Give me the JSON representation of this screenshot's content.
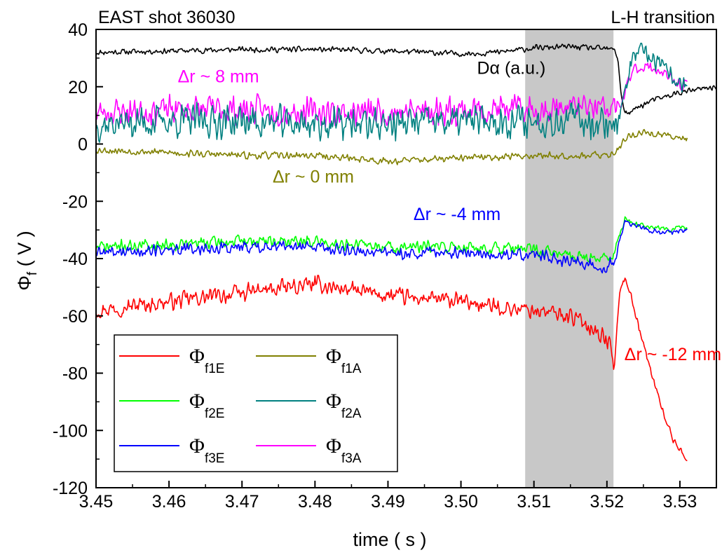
{
  "chart_data": {
    "type": "line",
    "title_left": "EAST shot 36030",
    "title_right": "L-H transition",
    "xlabel": "time  ( s )",
    "ylabel": "Φ",
    "ylabel_sub": "f",
    "ylabel_unit": " ( V )",
    "xlim": [
      3.45,
      3.535
    ],
    "ylim": [
      -120,
      40
    ],
    "xticks": [
      3.45,
      3.46,
      3.47,
      3.48,
      3.49,
      3.5,
      3.51,
      3.52,
      3.53
    ],
    "xtick_labels": [
      "3.45",
      "3.46",
      "3.47",
      "3.48",
      "3.49",
      "3.50",
      "3.51",
      "3.52",
      "3.53"
    ],
    "yticks": [
      40,
      20,
      0,
      -20,
      -40,
      -60,
      -80,
      -100,
      -120
    ],
    "ytick_labels": [
      "40",
      "20",
      "0",
      "-20",
      "-40",
      "-60",
      "-80",
      "-100",
      "-120"
    ],
    "shaded_region": {
      "x": [
        3.5088,
        3.5209
      ],
      "color": "#c8c8c8"
    },
    "grid": false,
    "legend_position": "bottom-left",
    "legend": [
      {
        "symbol": "Φ",
        "sub": "f1E",
        "color": "#ff0000"
      },
      {
        "symbol": "Φ",
        "sub": "f1A",
        "color": "#808000"
      },
      {
        "symbol": "Φ",
        "sub": "f2E",
        "color": "#00ff00"
      },
      {
        "symbol": "Φ",
        "sub": "f2A",
        "color": "#008080"
      },
      {
        "symbol": "Φ",
        "sub": "f3E",
        "color": "#0000ff"
      },
      {
        "symbol": "Φ",
        "sub": "f3A",
        "color": "#ff00ff"
      }
    ],
    "annotations": [
      {
        "text": "Δr ~ 8 mm",
        "x": 3.4612,
        "y": 21.5,
        "color": "#ff00ff"
      },
      {
        "text": "Dα (a.u.)",
        "x": 3.5022,
        "y": 24.5,
        "color": "#000000"
      },
      {
        "text": "Δr ~ 0 mm",
        "x": 3.4742,
        "y": -13.5,
        "color": "#808000"
      },
      {
        "text": "Δr ~ -4 mm",
        "x": 3.4935,
        "y": -26.5,
        "color": "#0000ff"
      },
      {
        "text": "Δr ~ -12 mm",
        "x": 3.5224,
        "y": -75.5,
        "color": "#ff0000"
      }
    ],
    "series": [
      {
        "name": "Dα (a.u.)",
        "color": "#000000",
        "noise": 1.2,
        "seed": 11,
        "x": [
          3.45,
          3.46,
          3.47,
          3.48,
          3.49,
          3.5,
          3.505,
          3.51,
          3.515,
          3.518,
          3.521,
          3.5215,
          3.522,
          3.5225,
          3.523,
          3.524,
          3.526,
          3.53,
          3.535
        ],
        "y": [
          32,
          32.5,
          33,
          33,
          32.5,
          31.5,
          32,
          33.5,
          34,
          33.5,
          33,
          30,
          16,
          11,
          10.5,
          12.5,
          15,
          18,
          20
        ]
      },
      {
        "name": "Φf3A",
        "color": "#ff00ff",
        "noise": 6,
        "seed": 23,
        "x": [
          3.45,
          3.46,
          3.47,
          3.48,
          3.49,
          3.5,
          3.51,
          3.515,
          3.521,
          3.522,
          3.5235,
          3.525,
          3.527,
          3.529,
          3.531
        ],
        "y": [
          11,
          12,
          12,
          11,
          11,
          12,
          12,
          13,
          12,
          14,
          26,
          27,
          26,
          22,
          20
        ],
        "noise_after": 2.5
      },
      {
        "name": "Φf2A",
        "color": "#008080",
        "noise": 7,
        "seed": 37,
        "x": [
          3.45,
          3.46,
          3.47,
          3.48,
          3.49,
          3.5,
          3.51,
          3.515,
          3.521,
          3.522,
          3.5235,
          3.525,
          3.527,
          3.529,
          3.531
        ],
        "y": [
          7,
          8,
          8,
          7,
          7,
          8,
          8,
          9,
          7,
          12,
          30,
          32,
          28,
          23,
          20
        ],
        "noise_after": 4
      },
      {
        "name": "Φf1A",
        "color": "#808000",
        "noise": 1.5,
        "seed": 53,
        "x": [
          3.45,
          3.46,
          3.47,
          3.48,
          3.49,
          3.5,
          3.51,
          3.52,
          3.521,
          3.523,
          3.525,
          3.528,
          3.531
        ],
        "y": [
          -2,
          -3,
          -4,
          -4,
          -6,
          -5,
          -4,
          -4,
          -3,
          3,
          4,
          3,
          2
        ],
        "noise_after": 1.5
      },
      {
        "name": "Φf2E",
        "color": "#00ff00",
        "noise": 2.6,
        "seed": 71,
        "x": [
          3.45,
          3.46,
          3.47,
          3.48,
          3.49,
          3.5,
          3.51,
          3.515,
          3.52,
          3.521,
          3.5215,
          3.5225,
          3.524,
          3.526,
          3.528,
          3.531
        ],
        "y": [
          -36,
          -35,
          -34,
          -34,
          -36,
          -36,
          -37,
          -39,
          -40,
          -38,
          -34,
          -26,
          -28,
          -29,
          -30,
          -29
        ],
        "noise_after": 1.2
      },
      {
        "name": "Φf3E",
        "color": "#0000ff",
        "noise": 2.6,
        "seed": 89,
        "x": [
          3.45,
          3.46,
          3.47,
          3.48,
          3.49,
          3.5,
          3.51,
          3.515,
          3.52,
          3.521,
          3.5215,
          3.5225,
          3.524,
          3.526,
          3.528,
          3.531
        ],
        "y": [
          -38,
          -37,
          -36,
          -36,
          -38,
          -38,
          -39,
          -41,
          -43,
          -40,
          -36,
          -27,
          -29,
          -30,
          -31,
          -30
        ],
        "noise_after": 1.2
      },
      {
        "name": "Φf1E",
        "color": "#ff0000",
        "noise": 3.5,
        "seed": 97,
        "x": [
          3.45,
          3.46,
          3.47,
          3.48,
          3.49,
          3.5,
          3.505,
          3.51,
          3.515,
          3.518,
          3.5205,
          3.521,
          3.5215,
          3.522,
          3.5225,
          3.523,
          3.525,
          3.527,
          3.529,
          3.531
        ],
        "y": [
          -58,
          -55,
          -52,
          -49,
          -53,
          -55,
          -57,
          -58,
          -60,
          -64,
          -70,
          -80,
          -58,
          -49,
          -47,
          -50,
          -70,
          -88,
          -103,
          -110
        ],
        "noise_after": 1.5
      }
    ]
  }
}
